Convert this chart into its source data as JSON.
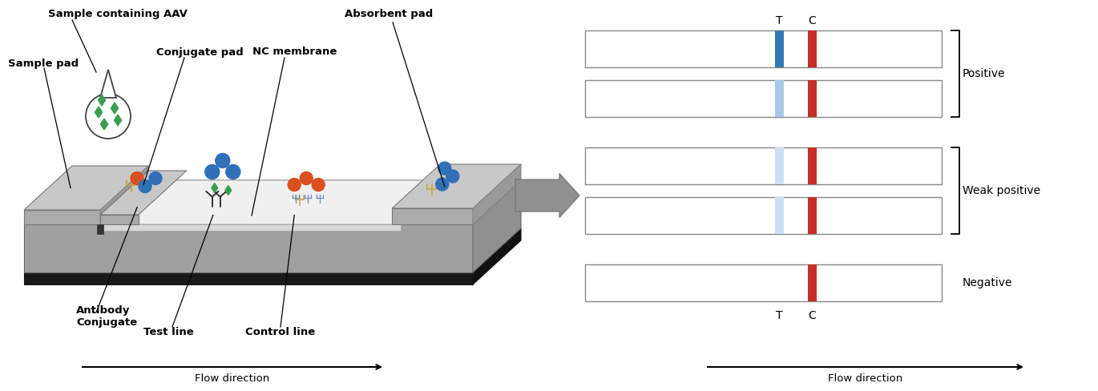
{
  "fig_width": 13.7,
  "fig_height": 4.88,
  "bg_color": "#ffffff",
  "left_labels": {
    "sample_containing_aav": "Sample containing AAV",
    "sample_pad": "Sample pad",
    "conjugate_pad": "Conjugate pad",
    "nc_membrane": "NC membrane",
    "absorbent_pad": "Absorbent pad",
    "antibody_conjugate": "Antibody\nConjugate",
    "test_line": "Test line",
    "control_line": "Control line",
    "flow_direction": "Flow direction"
  },
  "right_labels": {
    "positive": "Positive",
    "weak_positive": "Weak positive",
    "negative": "Negative",
    "T": "T",
    "C": "C",
    "flow_direction": "Flow direction"
  },
  "strip_colors": {
    "blue_strong": "#3478b5",
    "blue_light": "#a8c8e8",
    "blue_very_light": "#cce0f4",
    "red": "#c43025",
    "strip_border": "#888888"
  },
  "device_colors": {
    "base_top": "#c0c0c0",
    "base_side_front": "#a0a0a0",
    "base_side_right": "#909090",
    "base_black": "#303030",
    "base_black_front": "#1a1a1a",
    "pad_top": "#c8c8c8",
    "pad_front": "#aaaaaa",
    "pad_right": "#999999",
    "membrane_top": "#f0f0f0",
    "membrane_side": "#d8d8d8",
    "green_diamond": "#3a9e50",
    "orange_red": "#d95020",
    "blue_ball": "#3070b8",
    "branch_gold": "#c8a040",
    "branch_blue": "#7090c0",
    "antibody_black": "#282828"
  }
}
